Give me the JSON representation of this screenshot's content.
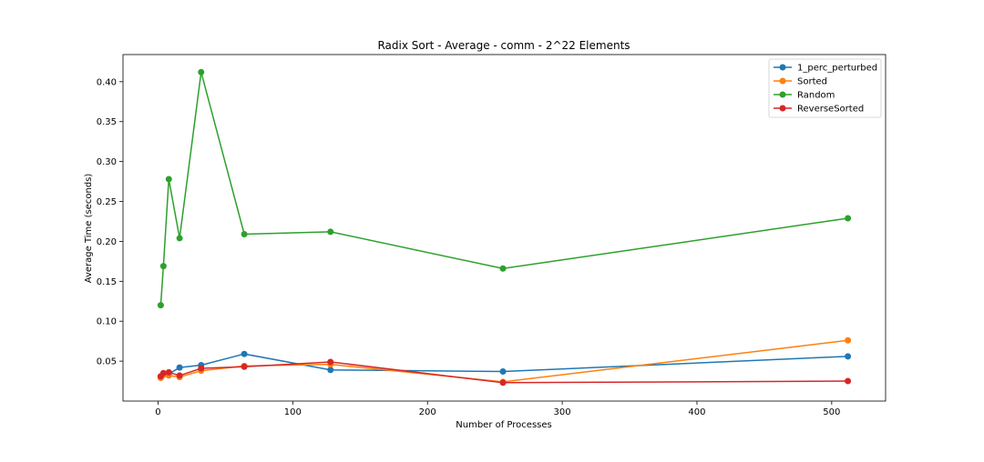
{
  "chart_data": {
    "type": "line",
    "title": "Radix Sort - Average - comm - 2^22 Elements",
    "xlabel": "Number of Processes",
    "ylabel": "Average Time (seconds)",
    "xlim": [
      -26,
      540
    ],
    "ylim": [
      0.0,
      0.434
    ],
    "xticks": [
      0,
      100,
      200,
      300,
      400,
      500
    ],
    "yticks": [
      0.05,
      0.1,
      0.15,
      0.2,
      0.25,
      0.3,
      0.35,
      0.4
    ],
    "ytick_labels": [
      "0.05",
      "0.10",
      "0.15",
      "0.20",
      "0.25",
      "0.30",
      "0.35",
      "0.40"
    ],
    "grid": false,
    "legend_position": "top-right",
    "x": [
      2,
      4,
      8,
      16,
      32,
      64,
      128,
      256,
      512
    ],
    "series": [
      {
        "name": "1_perc_perturbed",
        "color": "#1f77b4",
        "values": [
          0.03,
          0.033,
          0.034,
          0.042,
          0.045,
          0.059,
          0.039,
          0.037,
          0.056
        ]
      },
      {
        "name": "Sorted",
        "color": "#ff7f0e",
        "values": [
          0.029,
          0.033,
          0.032,
          0.03,
          0.038,
          0.044,
          0.046,
          0.024,
          0.076
        ]
      },
      {
        "name": "Random",
        "color": "#2ca02c",
        "values": [
          0.12,
          0.169,
          0.278,
          0.204,
          0.412,
          0.209,
          0.212,
          0.166,
          0.229
        ]
      },
      {
        "name": "ReverseSorted",
        "color": "#d62728",
        "values": [
          0.031,
          0.035,
          0.036,
          0.032,
          0.041,
          0.043,
          0.049,
          0.023,
          0.025
        ]
      }
    ]
  }
}
